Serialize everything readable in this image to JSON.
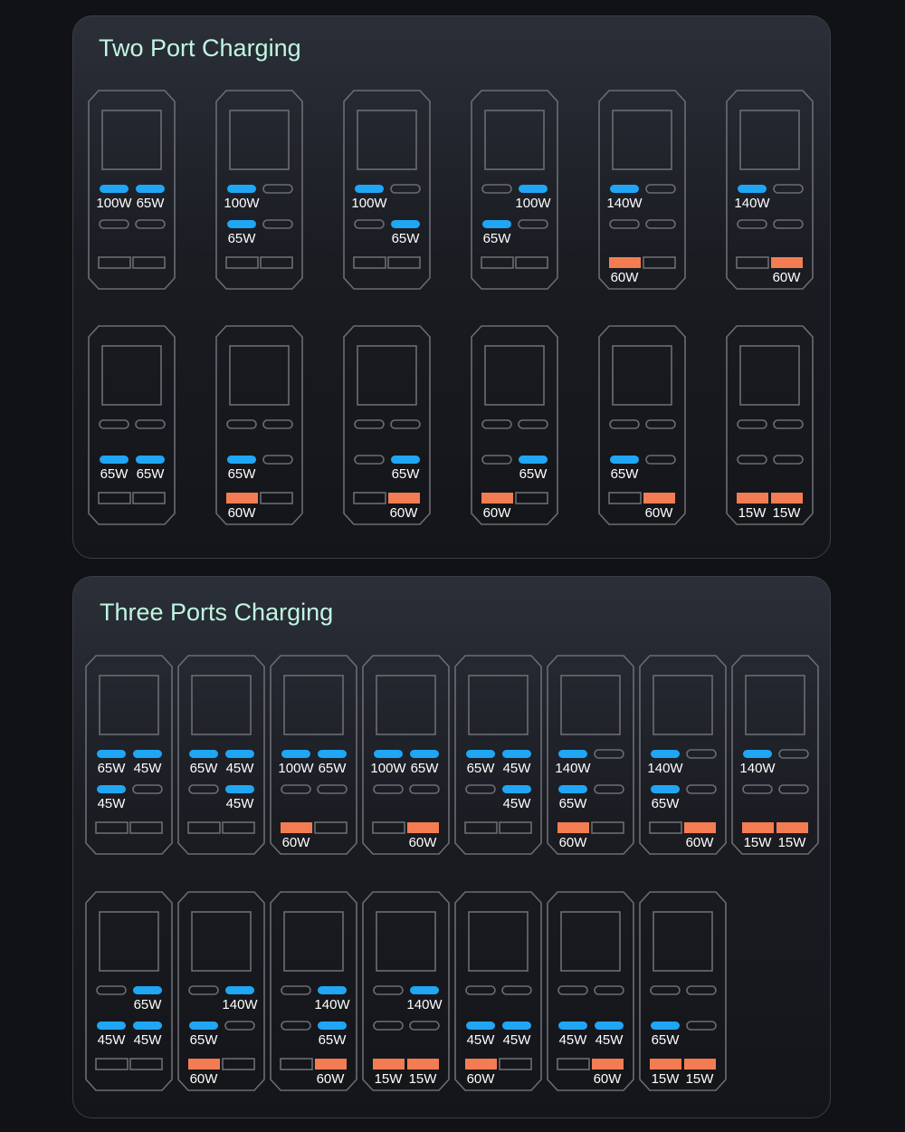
{
  "colors": {
    "active_c": "#1fa6f5",
    "active_a": "#f47c52",
    "outline": "#6b6d73",
    "accent": "#3fe3a6"
  },
  "sections": [
    {
      "title": "Two Port Charging",
      "rows": [
        [
          {
            "c": [
              "100W",
              "65W",
              "",
              ""
            ],
            "a": [
              "",
              ""
            ]
          },
          {
            "c": [
              "100W",
              "",
              "65W",
              ""
            ],
            "a": [
              "",
              ""
            ]
          },
          {
            "c": [
              "100W",
              "",
              "",
              "65W"
            ],
            "a": [
              "",
              ""
            ]
          },
          {
            "c": [
              "",
              "100W",
              "65W",
              ""
            ],
            "a": [
              "",
              ""
            ]
          },
          {
            "c": [
              "140W",
              "",
              "",
              ""
            ],
            "a": [
              "60W",
              ""
            ]
          },
          {
            "c": [
              "140W",
              "",
              "",
              ""
            ],
            "a": [
              "",
              "60W"
            ]
          }
        ],
        [
          {
            "c": [
              "",
              "",
              "65W",
              "65W"
            ],
            "a": [
              "",
              ""
            ]
          },
          {
            "c": [
              "",
              "",
              "65W",
              ""
            ],
            "a": [
              "60W",
              ""
            ]
          },
          {
            "c": [
              "",
              "",
              "",
              "65W"
            ],
            "a": [
              "",
              "60W"
            ]
          },
          {
            "c": [
              "",
              "",
              "",
              "65W"
            ],
            "a": [
              "60W",
              ""
            ]
          },
          {
            "c": [
              "",
              "",
              "65W",
              ""
            ],
            "a": [
              "",
              "60W"
            ]
          },
          {
            "c": [
              "",
              "",
              "",
              ""
            ],
            "a": [
              "15W",
              "15W"
            ]
          }
        ]
      ]
    },
    {
      "title": "Three Ports Charging",
      "rows": [
        [
          {
            "c": [
              "65W",
              "45W",
              "45W",
              ""
            ],
            "a": [
              "",
              ""
            ]
          },
          {
            "c": [
              "65W",
              "45W",
              "",
              "45W"
            ],
            "a": [
              "",
              ""
            ]
          },
          {
            "c": [
              "100W",
              "65W",
              "",
              ""
            ],
            "a": [
              "60W",
              ""
            ]
          },
          {
            "c": [
              "100W",
              "65W",
              "",
              ""
            ],
            "a": [
              "",
              "60W"
            ]
          },
          {
            "c": [
              "65W",
              "45W",
              "",
              "45W"
            ],
            "a": [
              "",
              ""
            ]
          },
          {
            "c": [
              "140W",
              "",
              "65W",
              ""
            ],
            "a": [
              "60W",
              ""
            ]
          },
          {
            "c": [
              "140W",
              "",
              "65W",
              ""
            ],
            "a": [
              "",
              "60W"
            ]
          },
          {
            "c": [
              "140W",
              "",
              "",
              ""
            ],
            "a": [
              "15W",
              "15W"
            ]
          }
        ],
        [
          {
            "c": [
              "",
              "65W",
              "45W",
              "45W"
            ],
            "a": [
              "",
              ""
            ]
          },
          {
            "c": [
              "",
              "140W",
              "65W",
              ""
            ],
            "a": [
              "60W",
              ""
            ]
          },
          {
            "c": [
              "",
              "140W",
              "",
              "65W"
            ],
            "a": [
              "",
              "60W"
            ]
          },
          {
            "c": [
              "",
              "140W",
              "",
              ""
            ],
            "a": [
              "15W",
              "15W"
            ]
          },
          {
            "c": [
              "",
              "",
              "45W",
              "45W"
            ],
            "a": [
              "60W",
              ""
            ]
          },
          {
            "c": [
              "",
              "",
              "45W",
              "45W"
            ],
            "a": [
              "",
              "60W"
            ]
          },
          {
            "c": [
              "",
              "",
              "65W",
              ""
            ],
            "a": [
              "15W",
              "15W"
            ]
          }
        ]
      ]
    }
  ]
}
